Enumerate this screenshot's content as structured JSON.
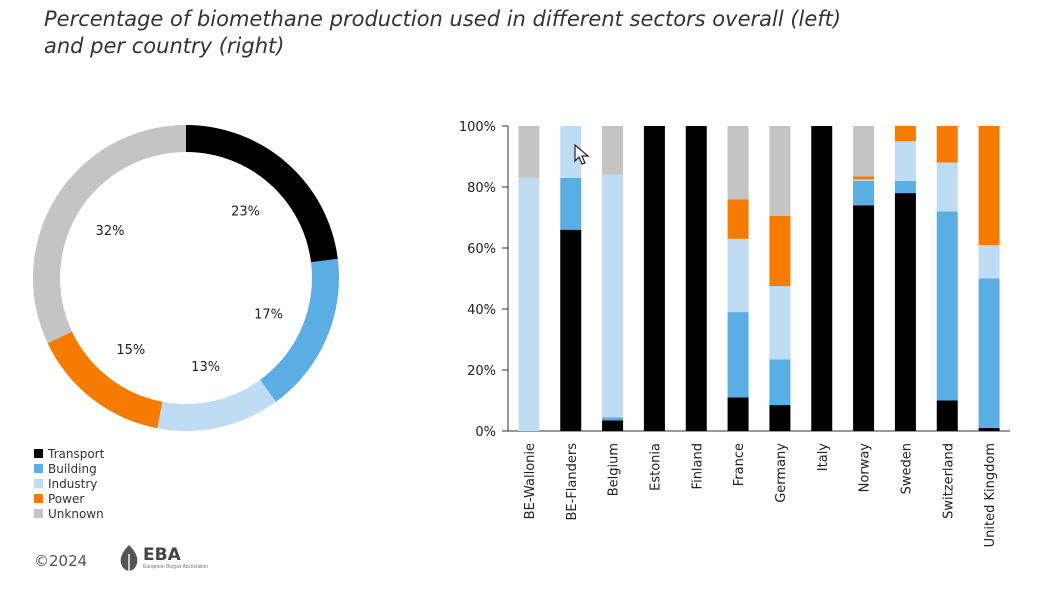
{
  "title": {
    "line1": "Percentage of biomethane production used in different sectors overall (left)",
    "line2": "and per country (right)"
  },
  "colors": {
    "Transport": "#000000",
    "Building": "#5aaee4",
    "Industry": "#bfdcf5",
    "Power": "#f57c00",
    "Unknown": "#c4c4c4"
  },
  "legend": [
    "Transport",
    "Building",
    "Industry",
    "Power",
    "Unknown"
  ],
  "footer": {
    "copyright": "©2024",
    "logo": "EBA",
    "logo_sub": "European Biogas Association"
  },
  "chart_data": [
    {
      "type": "pie",
      "subtype": "donut",
      "labels": [
        "Transport",
        "Building",
        "Industry",
        "Power",
        "Unknown"
      ],
      "values": [
        23,
        17,
        13,
        15,
        32
      ],
      "value_labels": [
        "23%",
        "17%",
        "13%",
        "15%",
        "32%"
      ]
    },
    {
      "type": "bar",
      "stacked": true,
      "categories": [
        "BE-Wallonie",
        "BE-Flanders",
        "Belgium",
        "Estonia",
        "Finland",
        "France",
        "Germany",
        "Italy",
        "Norway",
        "Sweden",
        "Switzerland",
        "United Kingdom"
      ],
      "series": [
        {
          "name": "Transport",
          "values": [
            0,
            66,
            3.5,
            100,
            100,
            11,
            8.5,
            100,
            74,
            78,
            10,
            1
          ]
        },
        {
          "name": "Building",
          "values": [
            0,
            17,
            1,
            0,
            0,
            28,
            15,
            0,
            8,
            4,
            62,
            49
          ]
        },
        {
          "name": "Industry",
          "values": [
            83,
            17,
            79.5,
            0,
            0,
            24,
            24,
            0,
            0.5,
            13,
            16,
            11
          ]
        },
        {
          "name": "Power",
          "values": [
            0,
            0,
            0,
            0,
            0,
            13,
            23,
            0,
            1,
            5,
            12,
            39
          ]
        },
        {
          "name": "Unknown",
          "values": [
            17,
            0,
            16,
            0,
            0,
            24,
            29.5,
            0,
            16.5,
            0,
            0,
            0
          ]
        }
      ],
      "yticks": [
        "0%",
        "20%",
        "40%",
        "60%",
        "80%",
        "100%"
      ],
      "ylim": [
        0,
        100
      ],
      "grid": false,
      "legend_position": "bottom-left"
    }
  ]
}
